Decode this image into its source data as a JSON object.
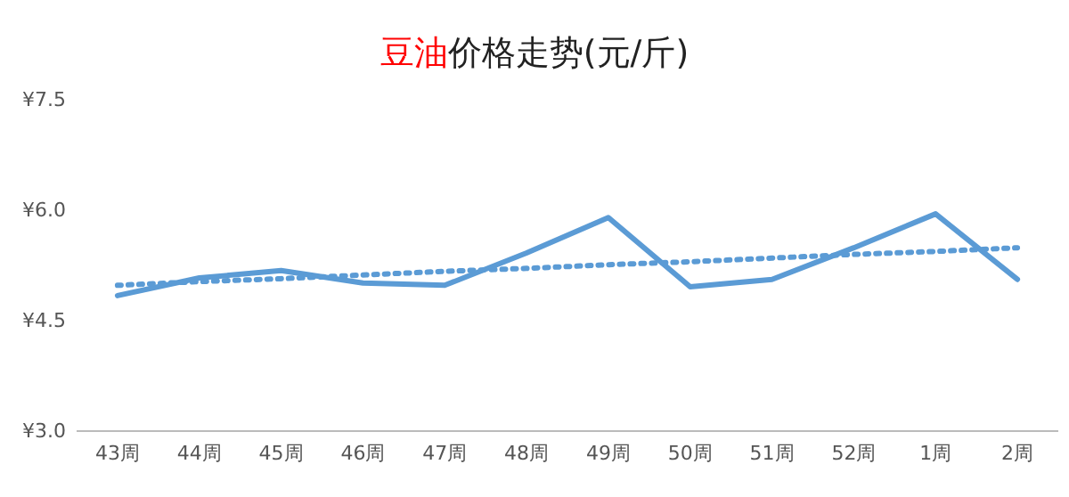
{
  "chart_data": {
    "type": "line",
    "title": "豆油价格走势(元/斤)",
    "categories": [
      "43周",
      "44周",
      "45周",
      "46周",
      "47周",
      "48周",
      "49周",
      "50周",
      "51周",
      "52周",
      "1周",
      "2周"
    ],
    "series": [
      {
        "color": "#5b9bd5",
        "values": [
          4.84,
          5.08,
          5.18,
          5.01,
          4.98,
          5.42,
          5.9,
          4.96,
          5.06,
          5.49,
          5.95,
          5.06
        ]
      },
      {
        "type": "line",
        "color": "#5b9bd5",
        "line_style": "dotted",
        "values": [
          4.98,
          5.03,
          5.07,
          5.12,
          5.17,
          5.21,
          5.26,
          5.3,
          5.35,
          5.4,
          5.44,
          5.49
        ]
      }
    ],
    "ylim": [
      3,
      7.5
    ],
    "yticks": [
      {
        "value": 3,
        "label": "¥3.0"
      },
      {
        "value": 4.5,
        "label": "¥4.5"
      },
      {
        "value": 6,
        "label": "¥6.0"
      },
      {
        "value": 7.5,
        "label": "¥7.5"
      }
    ],
    "grid": false,
    "marker": "none",
    "line_style": "solid"
  }
}
